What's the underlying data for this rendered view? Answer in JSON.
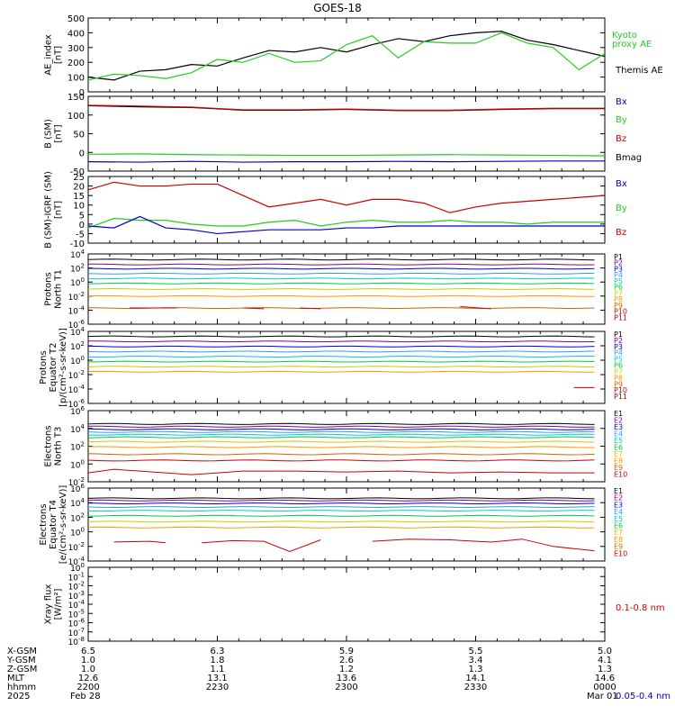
{
  "title": "GOES-18",
  "colors": {
    "black": "#000000",
    "green": "#22cc22",
    "blue": "#0000cc",
    "red": "#cc0000",
    "P": [
      "#000000",
      "#880088",
      "#0000cc",
      "#3399ff",
      "#00cccc",
      "#00cc44",
      "#cccc00",
      "#ff9900",
      "#cc6600",
      "#cc0000",
      "#aa0000"
    ],
    "E": [
      "#000000",
      "#880088",
      "#0000cc",
      "#3399ff",
      "#00cccc",
      "#00cc44",
      "#cccc00",
      "#ff9900",
      "#cc6600",
      "#cc0000"
    ]
  },
  "chart_data": [
    {
      "type": "line",
      "name": "ae",
      "ylabel": [
        "AE_index",
        "[nT]"
      ],
      "ylim": [
        0,
        500
      ],
      "yticks": [
        0,
        100,
        200,
        300,
        400,
        500
      ],
      "legend": [
        {
          "text": "Kyoto",
          "color": "green"
        },
        {
          "text": "proxy AE",
          "color": "green"
        },
        {
          "text": "Themis AE",
          "color": "black"
        }
      ],
      "x": [
        0,
        0.05,
        0.1,
        0.15,
        0.2,
        0.25,
        0.3,
        0.35,
        0.4,
        0.45,
        0.5,
        0.55,
        0.6,
        0.65,
        0.7,
        0.75,
        0.8,
        0.85,
        0.9,
        0.95,
        1.0
      ],
      "series": [
        {
          "color": "black",
          "values": [
            100,
            80,
            140,
            150,
            185,
            175,
            230,
            280,
            270,
            300,
            270,
            320,
            360,
            340,
            380,
            400,
            410,
            350,
            320,
            280,
            240
          ]
        },
        {
          "color": "green",
          "values": [
            80,
            120,
            110,
            90,
            130,
            220,
            200,
            260,
            200,
            210,
            320,
            380,
            230,
            340,
            330,
            330,
            400,
            330,
            300,
            150,
            260
          ]
        }
      ]
    },
    {
      "type": "line",
      "name": "bsm",
      "ylabel": [
        "B (SM)",
        "[nT]"
      ],
      "ylim": [
        -50,
        150
      ],
      "yticks": [
        -50,
        0,
        50,
        100,
        150
      ],
      "legend": [
        {
          "text": "Bx",
          "color": "blue"
        },
        {
          "text": "By",
          "color": "green"
        },
        {
          "text": "Bz",
          "color": "red"
        },
        {
          "text": "Bmag",
          "color": "black"
        }
      ],
      "x": [
        0,
        0.1,
        0.2,
        0.3,
        0.4,
        0.5,
        0.6,
        0.7,
        0.8,
        0.9,
        1.0
      ],
      "series": [
        {
          "color": "black",
          "values": [
            125,
            122,
            120,
            113,
            113,
            115,
            112,
            112,
            115,
            117,
            117
          ]
        },
        {
          "color": "red",
          "values": [
            126,
            124,
            121,
            114,
            114,
            116,
            113,
            113,
            116,
            118,
            118
          ]
        },
        {
          "color": "green",
          "values": [
            -5,
            -4,
            -6,
            -7,
            -8,
            -8,
            -7,
            -6,
            -7,
            -8,
            -9
          ]
        },
        {
          "color": "blue",
          "values": [
            -25,
            -26,
            -24,
            -26,
            -25,
            -25,
            -24,
            -25,
            -24,
            -23,
            -23
          ]
        }
      ]
    },
    {
      "type": "line",
      "name": "dbsm",
      "ylabel": [
        "B (SM)-IGRF (SM)",
        "[nT]"
      ],
      "ylim": [
        -10,
        25
      ],
      "yticks": [
        -10,
        -5,
        0,
        5,
        10,
        15,
        20,
        25
      ],
      "legend": [
        {
          "text": "Bx",
          "color": "blue"
        },
        {
          "text": "By",
          "color": "green"
        },
        {
          "text": "Bz",
          "color": "red"
        }
      ],
      "x": [
        0,
        0.05,
        0.1,
        0.15,
        0.2,
        0.25,
        0.3,
        0.35,
        0.4,
        0.45,
        0.5,
        0.55,
        0.6,
        0.65,
        0.7,
        0.75,
        0.8,
        0.85,
        0.9,
        0.95,
        1.0
      ],
      "series": [
        {
          "color": "red",
          "values": [
            18,
            22,
            20,
            20,
            21,
            21,
            15,
            9,
            11,
            13,
            10,
            13,
            13,
            11,
            6,
            9,
            11,
            12,
            13,
            14,
            15
          ]
        },
        {
          "color": "green",
          "values": [
            -2,
            3,
            2,
            2,
            0,
            -1,
            -1,
            1,
            2,
            -1,
            1,
            2,
            1,
            1,
            2,
            1,
            1,
            0,
            1,
            1,
            1
          ]
        },
        {
          "color": "blue",
          "values": [
            -1,
            -2,
            4,
            -2,
            -3,
            -5,
            -4,
            -3,
            -3,
            -3,
            -2,
            -2,
            -1,
            -1,
            -1,
            -1,
            -1,
            -1,
            -1,
            -1,
            -1
          ]
        }
      ]
    },
    {
      "type": "line",
      "name": "p1",
      "log": true,
      "ylabel": [
        "Protons",
        "North T1"
      ],
      "ylim": [
        -6,
        4
      ],
      "yticks": [
        {
          "e": "-6",
          "v": -6
        },
        {
          "e": "-4",
          "v": -4
        },
        {
          "e": "-2",
          "v": -2
        },
        {
          "e": "0",
          "v": 0
        },
        {
          "e": "2",
          "v": 2
        },
        {
          "e": "4",
          "v": 4
        }
      ],
      "legend": [
        "P1",
        "P2",
        "P3",
        "P4",
        "P5",
        "P6",
        "P7",
        "P8",
        "P9",
        "P10",
        "P11"
      ],
      "levels": [
        3.2,
        2.5,
        1.9,
        1.2,
        0.5,
        -0.2,
        -1.0,
        -2.0,
        -3.7
      ],
      "segments": [
        {
          "color": 9,
          "pts": [
            [
              0.08,
              -3.7
            ],
            [
              0.17,
              -3.7
            ]
          ]
        },
        {
          "color": 9,
          "pts": [
            [
              0.3,
              -3.7
            ],
            [
              0.34,
              -3.8
            ]
          ]
        },
        {
          "color": 9,
          "pts": [
            [
              0.41,
              -3.7
            ],
            [
              0.45,
              -3.8
            ]
          ]
        },
        {
          "color": 9,
          "pts": [
            [
              0.72,
              -3.5
            ],
            [
              0.78,
              -3.8
            ]
          ]
        }
      ]
    },
    {
      "type": "line",
      "name": "p2",
      "log": true,
      "ylabel": [
        "Protons",
        "Equator T2",
        "[p/(cm²-s-sr-keV)]"
      ],
      "ylim": [
        -6,
        4
      ],
      "yticks": [
        {
          "e": "-6",
          "v": -6
        },
        {
          "e": "-4",
          "v": -4
        },
        {
          "e": "-2",
          "v": -2
        },
        {
          "e": "0",
          "v": 0
        },
        {
          "e": "2",
          "v": 2
        },
        {
          "e": "4",
          "v": 4
        }
      ],
      "legend": [
        "P1",
        "P2",
        "P3",
        "P4",
        "P5",
        "P6",
        "P7",
        "P8",
        "P9",
        "P10",
        "P11"
      ],
      "levels": [
        3.3,
        2.6,
        1.9,
        1.2,
        0.5,
        -0.2,
        -0.9,
        -1.6
      ],
      "segments": [
        {
          "color": 9,
          "pts": [
            [
              0.94,
              -3.8
            ],
            [
              0.98,
              -3.8
            ]
          ]
        }
      ]
    },
    {
      "type": "line",
      "name": "e3",
      "log": true,
      "ylabel": [
        "Electrons",
        "North T3"
      ],
      "ylim": [
        -2,
        6
      ],
      "yticks": [
        {
          "e": "-2",
          "v": -2
        },
        {
          "e": "0",
          "v": 0
        },
        {
          "e": "2",
          "v": 2
        },
        {
          "e": "4",
          "v": 4
        },
        {
          "e": "6",
          "v": 6
        }
      ],
      "legend": [
        "E1",
        "E2",
        "E3",
        "E4",
        "E5",
        "E6",
        "E7",
        "E8",
        "E9",
        "E10"
      ],
      "levels": [
        4.5,
        4.2,
        3.9,
        3.6,
        3.3,
        3.0,
        2.5,
        1.9,
        1.1,
        0.4
      ],
      "wavy": {
        "color": 9,
        "pts": [
          [
            0,
            -1
          ],
          [
            0.05,
            -0.6
          ],
          [
            0.1,
            -0.8
          ],
          [
            0.2,
            -1.2
          ],
          [
            0.3,
            -0.8
          ],
          [
            0.4,
            -0.8
          ],
          [
            0.5,
            -0.9
          ],
          [
            0.6,
            -0.8
          ],
          [
            0.7,
            -1
          ],
          [
            0.8,
            -0.9
          ],
          [
            0.9,
            -1
          ],
          [
            0.98,
            -1
          ]
        ]
      }
    },
    {
      "type": "line",
      "name": "e4",
      "log": true,
      "ylabel": [
        "Electrons",
        "Equator T4",
        "[e/(cm²-s-sr-keV)]"
      ],
      "ylim": [
        -4,
        6
      ],
      "yticks": [
        {
          "e": "-4",
          "v": -4
        },
        {
          "e": "-2",
          "v": -2
        },
        {
          "e": "0",
          "v": 0
        },
        {
          "e": "2",
          "v": 2
        },
        {
          "e": "4",
          "v": 4
        },
        {
          "e": "6",
          "v": 6
        }
      ],
      "legend": [
        "E1",
        "E2",
        "E3",
        "E4",
        "E5",
        "E6",
        "E7",
        "E8",
        "E9",
        "E10"
      ],
      "levels": [
        4.6,
        4.3,
        3.9,
        3.4,
        2.9,
        2.2,
        1.4,
        0.6
      ],
      "segments": [
        {
          "color": 9,
          "pts": [
            [
              0.05,
              -1.4
            ],
            [
              0.12,
              -1.3
            ],
            [
              0.15,
              -1.5
            ]
          ]
        },
        {
          "color": 9,
          "pts": [
            [
              0.22,
              -1.5
            ],
            [
              0.28,
              -1.2
            ],
            [
              0.34,
              -1.3
            ],
            [
              0.39,
              -2.7
            ],
            [
              0.45,
              -1.1
            ]
          ]
        },
        {
          "color": 9,
          "pts": [
            [
              0.55,
              -1.3
            ],
            [
              0.62,
              -1.0
            ],
            [
              0.7,
              -1.1
            ],
            [
              0.78,
              -1.4
            ],
            [
              0.84,
              -1.0
            ],
            [
              0.9,
              -2.0
            ],
            [
              0.98,
              -2.6
            ]
          ]
        }
      ]
    },
    {
      "type": "line",
      "name": "xray",
      "log": true,
      "ylabel": [
        "Xray flux",
        "[W/m²]"
      ],
      "ylim": [
        -8,
        0
      ],
      "yticks": [
        {
          "e": "-8",
          "v": -8
        },
        {
          "e": "-7",
          "v": -7
        },
        {
          "e": "-6",
          "v": -6
        },
        {
          "e": "-5",
          "v": -5
        },
        {
          "e": "-4",
          "v": -4
        },
        {
          "e": "-3",
          "v": -3
        },
        {
          "e": "-2",
          "v": -2
        },
        {
          "e": "-1",
          "v": -1
        },
        {
          "e": "0",
          "v": 0
        }
      ],
      "legend": [
        {
          "text": "0.1-0.8 nm",
          "color": "red"
        },
        {
          "text": "0.05-0.4 nm",
          "color": "blue"
        }
      ]
    }
  ],
  "xaxis": {
    "row_labels": [
      "X-GSM",
      "Y-GSM",
      "Z-GSM",
      "MLT",
      "hhmm",
      "2025"
    ],
    "columns": [
      {
        "vals": [
          "6.5",
          "1.0",
          "1.0",
          "12.6",
          "2200",
          "Feb 28"
        ]
      },
      {
        "vals": [
          "6.3",
          "1.8",
          "1.1",
          "13.1",
          "2230",
          ""
        ]
      },
      {
        "vals": [
          "5.9",
          "2.6",
          "1.2",
          "13.6",
          "2300",
          ""
        ]
      },
      {
        "vals": [
          "5.5",
          "3.4",
          "1.3",
          "14.1",
          "2330",
          ""
        ]
      },
      {
        "vals": [
          "5.0",
          "4.1",
          "1.3",
          "14.6",
          "0000",
          "Mar 01"
        ]
      }
    ]
  }
}
